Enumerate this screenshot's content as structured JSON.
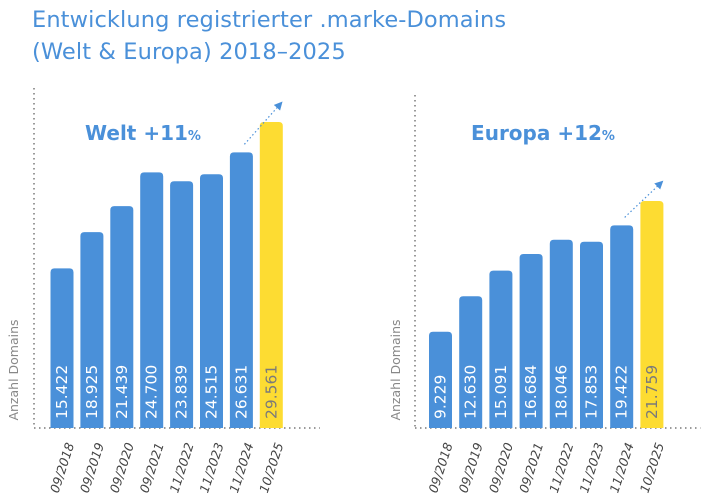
{
  "page": {
    "title_line1": "Entwicklung registrierter .marke-Domains",
    "title_line2": "(Welt & Europa) 2018–2025"
  },
  "colors": {
    "title": "#4a90d9",
    "bar": "#4a90d9",
    "highlight_bar": "#fddc32",
    "bar_label": "#ffffff",
    "highlight_label": "#7a7a7a",
    "axis": "#9a9a9a",
    "arrow": "#4a90d9"
  },
  "chart_data": [
    {
      "type": "bar",
      "heading": "Welt +11",
      "heading_suffix": "%",
      "ylabel": "Anzahl Domains",
      "xlabel": "",
      "categories": [
        "09/2018",
        "09/2019",
        "09/2020",
        "09/2021",
        "11/2022",
        "11/2023",
        "11/2024",
        "10/2025"
      ],
      "values": [
        15422,
        18925,
        21439,
        24700,
        23839,
        24515,
        26631,
        29561
      ],
      "value_labels": [
        "15.422",
        "18.925",
        "21.439",
        "24.700",
        "23.839",
        "24.515",
        "26.631",
        "29.561"
      ],
      "highlight_index": 7,
      "trend_arrow": true
    },
    {
      "type": "bar",
      "heading": "Europa +12",
      "heading_suffix": "%",
      "ylabel": "Anzahl Domains",
      "xlabel": "",
      "categories": [
        "09/2018",
        "09/2019",
        "09/2020",
        "09/2021",
        "11/2022",
        "11/2023",
        "11/2024",
        "10/2025"
      ],
      "values": [
        9229,
        12630,
        15091,
        16684,
        18046,
        17853,
        19422,
        21759
      ],
      "value_labels": [
        "9.229",
        "12.630",
        "15.091",
        "16.684",
        "18.046",
        "17.853",
        "19.422",
        "21.759"
      ],
      "highlight_index": 7,
      "trend_arrow": true
    }
  ]
}
